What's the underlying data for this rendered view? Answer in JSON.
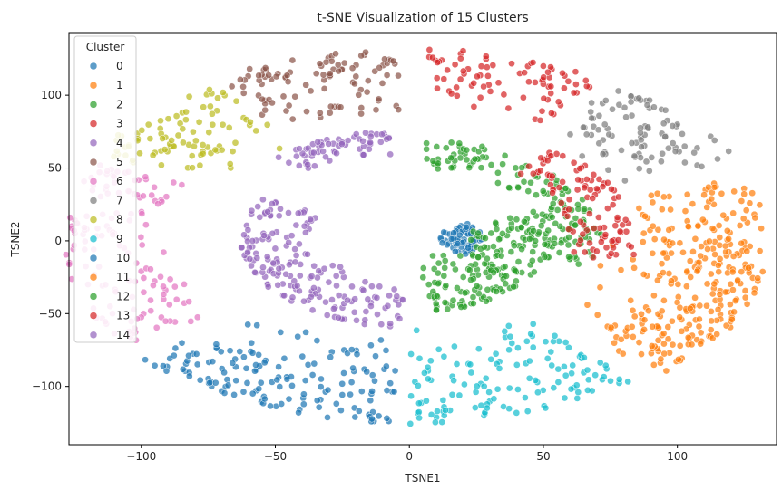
{
  "chart_data": {
    "type": "scatter",
    "title": "t-SNE Visualization of 15 Clusters",
    "xlabel": "TSNE1",
    "ylabel": "TSNE2",
    "xlim": [
      -127,
      137
    ],
    "ylim": [
      -140,
      143
    ],
    "xticks": [
      -100,
      -50,
      0,
      50,
      100
    ],
    "yticks": [
      -100,
      -50,
      0,
      50,
      100
    ],
    "grid": false,
    "legend": {
      "title": "Cluster",
      "position": "top-left"
    },
    "series": [
      {
        "name": "0",
        "color": "#1f77b4",
        "region": {
          "r": [
            6,
            26
          ],
          "theta": [
            -25,
            30
          ]
        }
      },
      {
        "name": "1",
        "color": "#ff7f0e",
        "region": {
          "r": [
            78,
            135
          ],
          "theta": [
            -45,
            0
          ]
        }
      },
      {
        "name": "2",
        "color": "#2ca02c",
        "region": {
          "r": [
            8,
            52
          ],
          "theta": [
            -80,
            25
          ]
        }
      },
      {
        "name": "3",
        "color": "#d62728",
        "region": {
          "r": [
            90,
            135
          ],
          "theta": [
            58,
            88
          ]
        }
      },
      {
        "name": "4",
        "color": "#9467bd",
        "region": {
          "r": [
            25,
            62
          ],
          "theta": [
            150,
            270
          ]
        }
      },
      {
        "name": "5",
        "color": "#8c564b",
        "region": {
          "r": [
            72,
            135
          ],
          "theta": [
            92,
            122
          ]
        }
      },
      {
        "name": "6",
        "color": "#e377c2",
        "region": {
          "r": [
            75,
            130
          ],
          "theta": [
            155,
            215
          ]
        }
      },
      {
        "name": "7",
        "color": "#7f7f7f",
        "region": {
          "r": [
            80,
            135
          ],
          "theta": [
            25,
            55
          ]
        }
      },
      {
        "name": "8",
        "color": "#bcbd22",
        "region": {
          "r": [
            75,
            132
          ],
          "theta": [
            123,
            152
          ]
        }
      },
      {
        "name": "9",
        "color": "#17becf",
        "region": {
          "r": [
            55,
            130
          ],
          "theta": [
            -90,
            -50
          ]
        }
      },
      {
        "name": "10",
        "color": "#1f77b4",
        "region": {
          "r": [
            55,
            130
          ],
          "theta": [
            -140,
            -92
          ]
        }
      },
      {
        "name": "11",
        "color": "#ff7f0e",
        "region": {
          "r": [
            65,
            135
          ],
          "theta": [
            -40,
            20
          ]
        }
      },
      {
        "name": "12",
        "color": "#2ca02c",
        "region": {
          "r": [
            42,
            72
          ],
          "theta": [
            -15,
            85
          ]
        }
      },
      {
        "name": "13",
        "color": "#d62728",
        "region": {
          "r": [
            50,
            85
          ],
          "theta": [
            -10,
            50
          ]
        }
      },
      {
        "name": "14",
        "color": "#9467bd",
        "region": {
          "r": [
            55,
            78
          ],
          "theta": [
            95,
            130
          ]
        }
      }
    ]
  }
}
